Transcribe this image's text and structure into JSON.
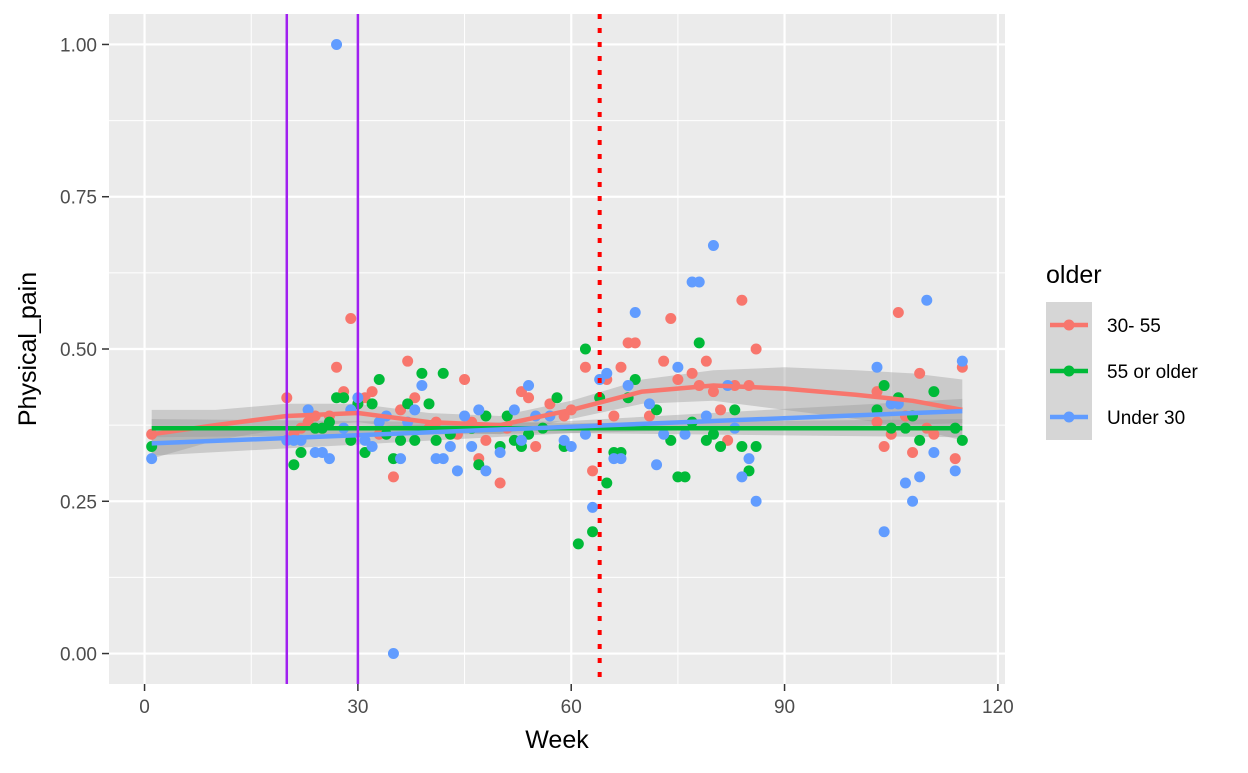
{
  "chart_data": {
    "type": "scatter",
    "xlabel": "Week",
    "ylabel": "Physical_pain",
    "xlim": [
      -5,
      121
    ],
    "ylim": [
      -0.05,
      1.05
    ],
    "x_ticks": [
      0,
      30,
      60,
      90,
      120
    ],
    "x_tick_labels": [
      "0",
      "30",
      "60",
      "90",
      "120"
    ],
    "y_ticks": [
      0,
      0.25,
      0.5,
      0.75,
      1
    ],
    "y_tick_labels": [
      "0.00",
      "0.25",
      "0.50",
      "0.75",
      "1.00"
    ],
    "grid": true,
    "legend": {
      "title": "older",
      "placement": "right",
      "entries": [
        "30- 55",
        "55 or older",
        "Under 30"
      ]
    },
    "colors": {
      "30- 55": "#F8766D",
      "55 or older": "#00BA38",
      "Under 30": "#619CFF",
      "reference_vlines": "#A020F0",
      "dotted_vline": "#FF0000",
      "panel": "#EBEBEB",
      "ribbon": "#999999"
    },
    "reference_lines": [
      {
        "x": 20,
        "style": "solid",
        "color": "#A020F0"
      },
      {
        "x": 30,
        "style": "solid",
        "color": "#A020F0"
      },
      {
        "x": 64,
        "style": "dotted",
        "color": "#FF0000"
      }
    ],
    "series": [
      {
        "name": "30- 55",
        "points": [
          [
            1,
            0.36
          ],
          [
            20,
            0.42
          ],
          [
            21,
            0.36
          ],
          [
            22,
            0.37
          ],
          [
            23,
            0.38
          ],
          [
            24,
            0.39
          ],
          [
            25,
            0.37
          ],
          [
            26,
            0.39
          ],
          [
            27,
            0.47
          ],
          [
            28,
            0.43
          ],
          [
            29,
            0.55
          ],
          [
            30,
            0.41
          ],
          [
            31,
            0.42
          ],
          [
            32,
            0.43
          ],
          [
            33,
            0.36
          ],
          [
            35,
            0.29
          ],
          [
            36,
            0.4
          ],
          [
            37,
            0.48
          ],
          [
            38,
            0.42
          ],
          [
            40,
            0.37
          ],
          [
            41,
            0.38
          ],
          [
            44,
            0.36
          ],
          [
            45,
            0.45
          ],
          [
            46,
            0.38
          ],
          [
            47,
            0.32
          ],
          [
            48,
            0.35
          ],
          [
            50,
            0.28
          ],
          [
            51,
            0.37
          ],
          [
            53,
            0.43
          ],
          [
            54,
            0.42
          ],
          [
            55,
            0.34
          ],
          [
            57,
            0.41
          ],
          [
            59,
            0.39
          ],
          [
            60,
            0.4
          ],
          [
            62,
            0.47
          ],
          [
            63,
            0.3
          ],
          [
            65,
            0.45
          ],
          [
            66,
            0.39
          ],
          [
            67,
            0.47
          ],
          [
            68,
            0.51
          ],
          [
            69,
            0.51
          ],
          [
            71,
            0.39
          ],
          [
            73,
            0.48
          ],
          [
            74,
            0.55
          ],
          [
            75,
            0.45
          ],
          [
            77,
            0.46
          ],
          [
            78,
            0.44
          ],
          [
            79,
            0.48
          ],
          [
            80,
            0.43
          ],
          [
            81,
            0.4
          ],
          [
            82,
            0.35
          ],
          [
            83,
            0.44
          ],
          [
            84,
            0.58
          ],
          [
            85,
            0.44
          ],
          [
            86,
            0.5
          ],
          [
            103,
            0.43
          ],
          [
            103,
            0.38
          ],
          [
            104,
            0.34
          ],
          [
            105,
            0.36
          ],
          [
            106,
            0.56
          ],
          [
            107,
            0.39
          ],
          [
            108,
            0.33
          ],
          [
            109,
            0.46
          ],
          [
            110,
            0.37
          ],
          [
            111,
            0.36
          ],
          [
            114,
            0.32
          ],
          [
            115,
            0.47
          ]
        ]
      },
      {
        "name": "55 or older",
        "points": [
          [
            1,
            0.34
          ],
          [
            21,
            0.31
          ],
          [
            22,
            0.33
          ],
          [
            24,
            0.37
          ],
          [
            25,
            0.37
          ],
          [
            26,
            0.38
          ],
          [
            27,
            0.42
          ],
          [
            28,
            0.42
          ],
          [
            29,
            0.35
          ],
          [
            30,
            0.41
          ],
          [
            31,
            0.33
          ],
          [
            32,
            0.41
          ],
          [
            33,
            0.45
          ],
          [
            34,
            0.36
          ],
          [
            35,
            0.32
          ],
          [
            36,
            0.35
          ],
          [
            37,
            0.41
          ],
          [
            38,
            0.35
          ],
          [
            39,
            0.46
          ],
          [
            40,
            0.41
          ],
          [
            41,
            0.35
          ],
          [
            42,
            0.46
          ],
          [
            43,
            0.36
          ],
          [
            46,
            0.37
          ],
          [
            47,
            0.31
          ],
          [
            48,
            0.39
          ],
          [
            50,
            0.34
          ],
          [
            51,
            0.39
          ],
          [
            52,
            0.35
          ],
          [
            53,
            0.34
          ],
          [
            54,
            0.36
          ],
          [
            56,
            0.37
          ],
          [
            58,
            0.42
          ],
          [
            59,
            0.34
          ],
          [
            61,
            0.18
          ],
          [
            62,
            0.5
          ],
          [
            63,
            0.2
          ],
          [
            64,
            0.42
          ],
          [
            65,
            0.28
          ],
          [
            66,
            0.33
          ],
          [
            67,
            0.33
          ],
          [
            68,
            0.42
          ],
          [
            69,
            0.45
          ],
          [
            72,
            0.4
          ],
          [
            74,
            0.35
          ],
          [
            75,
            0.29
          ],
          [
            76,
            0.29
          ],
          [
            77,
            0.38
          ],
          [
            78,
            0.51
          ],
          [
            79,
            0.35
          ],
          [
            80,
            0.36
          ],
          [
            81,
            0.34
          ],
          [
            83,
            0.4
          ],
          [
            84,
            0.34
          ],
          [
            85,
            0.3
          ],
          [
            86,
            0.34
          ],
          [
            103,
            0.4
          ],
          [
            104,
            0.44
          ],
          [
            105,
            0.37
          ],
          [
            106,
            0.42
          ],
          [
            107,
            0.37
          ],
          [
            108,
            0.39
          ],
          [
            109,
            0.35
          ],
          [
            111,
            0.43
          ],
          [
            114,
            0.37
          ],
          [
            115,
            0.35
          ]
        ]
      },
      {
        "name": "Under 30",
        "points": [
          [
            1,
            0.32
          ],
          [
            20,
            0.35
          ],
          [
            21,
            0.35
          ],
          [
            22,
            0.35
          ],
          [
            23,
            0.4
          ],
          [
            24,
            0.33
          ],
          [
            25,
            0.33
          ],
          [
            26,
            0.32
          ],
          [
            27,
            1.0
          ],
          [
            28,
            0.37
          ],
          [
            29,
            0.4
          ],
          [
            30,
            0.42
          ],
          [
            31,
            0.35
          ],
          [
            32,
            0.34
          ],
          [
            33,
            0.38
          ],
          [
            34,
            0.39
          ],
          [
            35,
            0.0
          ],
          [
            36,
            0.32
          ],
          [
            37,
            0.38
          ],
          [
            38,
            0.4
          ],
          [
            39,
            0.44
          ],
          [
            41,
            0.32
          ],
          [
            42,
            0.32
          ],
          [
            43,
            0.34
          ],
          [
            44,
            0.3
          ],
          [
            45,
            0.39
          ],
          [
            46,
            0.34
          ],
          [
            47,
            0.4
          ],
          [
            48,
            0.3
          ],
          [
            50,
            0.33
          ],
          [
            52,
            0.4
          ],
          [
            53,
            0.35
          ],
          [
            54,
            0.44
          ],
          [
            55,
            0.39
          ],
          [
            57,
            0.39
          ],
          [
            59,
            0.35
          ],
          [
            60,
            0.34
          ],
          [
            62,
            0.36
          ],
          [
            63,
            0.24
          ],
          [
            64,
            0.45
          ],
          [
            65,
            0.46
          ],
          [
            66,
            0.32
          ],
          [
            67,
            0.32
          ],
          [
            68,
            0.44
          ],
          [
            69,
            0.56
          ],
          [
            71,
            0.41
          ],
          [
            72,
            0.31
          ],
          [
            73,
            0.36
          ],
          [
            75,
            0.47
          ],
          [
            76,
            0.36
          ],
          [
            77,
            0.61
          ],
          [
            78,
            0.61
          ],
          [
            79,
            0.39
          ],
          [
            80,
            0.67
          ],
          [
            82,
            0.44
          ],
          [
            83,
            0.37
          ],
          [
            84,
            0.29
          ],
          [
            85,
            0.32
          ],
          [
            86,
            0.25
          ],
          [
            103,
            0.47
          ],
          [
            104,
            0.2
          ],
          [
            105,
            0.41
          ],
          [
            106,
            0.41
          ],
          [
            107,
            0.28
          ],
          [
            108,
            0.25
          ],
          [
            109,
            0.29
          ],
          [
            110,
            0.58
          ],
          [
            111,
            0.33
          ],
          [
            114,
            0.3
          ],
          [
            115,
            0.48
          ]
        ]
      }
    ],
    "smooth_lines": [
      {
        "name": "30- 55",
        "points": [
          [
            1,
            0.36
          ],
          [
            10,
            0.375
          ],
          [
            20,
            0.39
          ],
          [
            30,
            0.395
          ],
          [
            40,
            0.38
          ],
          [
            50,
            0.375
          ],
          [
            60,
            0.4
          ],
          [
            70,
            0.43
          ],
          [
            80,
            0.44
          ],
          [
            90,
            0.435
          ],
          [
            100,
            0.425
          ],
          [
            108,
            0.415
          ],
          [
            115,
            0.4
          ]
        ],
        "band": [
          [
            1,
            0.32,
            0.4
          ],
          [
            10,
            0.35,
            0.4
          ],
          [
            20,
            0.37,
            0.41
          ],
          [
            30,
            0.38,
            0.41
          ],
          [
            40,
            0.365,
            0.395
          ],
          [
            50,
            0.36,
            0.39
          ],
          [
            60,
            0.385,
            0.415
          ],
          [
            70,
            0.41,
            0.45
          ],
          [
            80,
            0.415,
            0.465
          ],
          [
            90,
            0.4,
            0.47
          ],
          [
            100,
            0.385,
            0.465
          ],
          [
            108,
            0.37,
            0.46
          ],
          [
            115,
            0.35,
            0.45
          ]
        ]
      },
      {
        "name": "55 or older",
        "points": [
          [
            1,
            0.37
          ],
          [
            115,
            0.37
          ]
        ],
        "band": [
          [
            1,
            0.355,
            0.385
          ],
          [
            60,
            0.362,
            0.378
          ],
          [
            115,
            0.355,
            0.385
          ]
        ]
      },
      {
        "name": "Under 30",
        "points": [
          [
            1,
            0.345
          ],
          [
            115,
            0.398
          ]
        ],
        "band": [
          [
            1,
            0.325,
            0.365
          ],
          [
            60,
            0.362,
            0.382
          ],
          [
            115,
            0.378,
            0.418
          ]
        ]
      }
    ]
  }
}
